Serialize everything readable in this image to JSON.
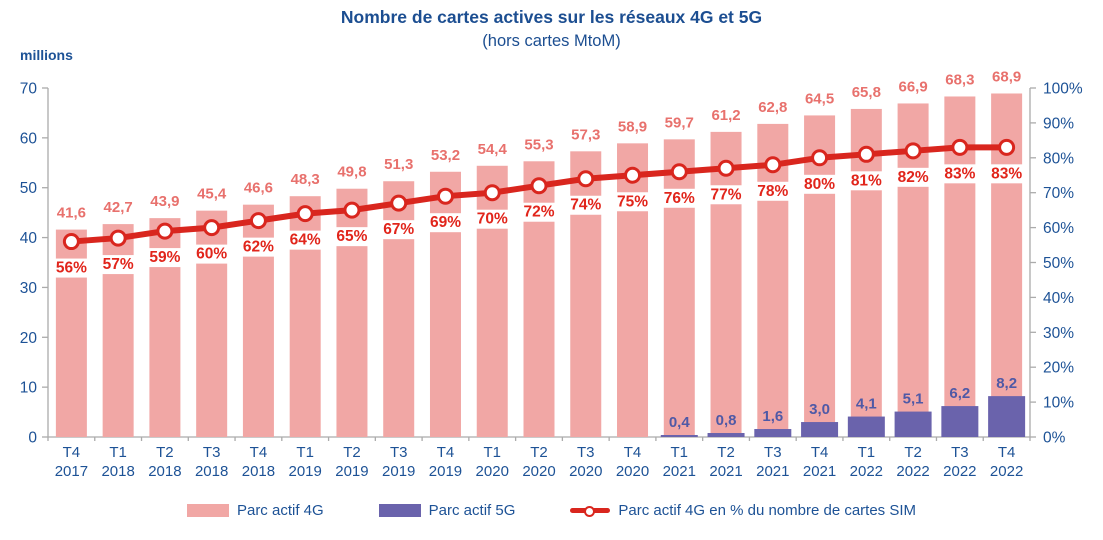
{
  "header": {
    "title": "Nombre de cartes actives sur les réseaux 4G et 5G",
    "subtitle": "(hors cartes MtoM)",
    "units_label": "millions"
  },
  "chart_data": {
    "type": "combo-bar-line",
    "title": "Nombre de cartes actives sur les réseaux 4G et 5G",
    "subtitle": "(hors cartes MtoM)",
    "unit_left": "millions",
    "grid": false,
    "legend_position": "bottom",
    "categories": [
      {
        "quarter": "T4",
        "year": "2017"
      },
      {
        "quarter": "T1",
        "year": "2018"
      },
      {
        "quarter": "T2",
        "year": "2018"
      },
      {
        "quarter": "T3",
        "year": "2018"
      },
      {
        "quarter": "T4",
        "year": "2018"
      },
      {
        "quarter": "T1",
        "year": "2019"
      },
      {
        "quarter": "T2",
        "year": "2019"
      },
      {
        "quarter": "T3",
        "year": "2019"
      },
      {
        "quarter": "T4",
        "year": "2019"
      },
      {
        "quarter": "T1",
        "year": "2020"
      },
      {
        "quarter": "T2",
        "year": "2020"
      },
      {
        "quarter": "T3",
        "year": "2020"
      },
      {
        "quarter": "T4",
        "year": "2020"
      },
      {
        "quarter": "T1",
        "year": "2021"
      },
      {
        "quarter": "T2",
        "year": "2021"
      },
      {
        "quarter": "T3",
        "year": "2021"
      },
      {
        "quarter": "T4",
        "year": "2021"
      },
      {
        "quarter": "T1",
        "year": "2022"
      },
      {
        "quarter": "T2",
        "year": "2022"
      },
      {
        "quarter": "T3",
        "year": "2022"
      },
      {
        "quarter": "T4",
        "year": "2022"
      }
    ],
    "series": [
      {
        "name": "Parc actif 4G",
        "type": "bar",
        "axis": "left",
        "values": [
          41.6,
          42.7,
          43.9,
          45.4,
          46.6,
          48.3,
          49.8,
          51.3,
          53.2,
          54.4,
          55.3,
          57.3,
          58.9,
          59.7,
          61.2,
          62.8,
          64.5,
          65.8,
          66.9,
          68.3,
          68.9
        ]
      },
      {
        "name": "Parc actif 5G",
        "type": "bar",
        "axis": "left",
        "values": [
          null,
          null,
          null,
          null,
          null,
          null,
          null,
          null,
          null,
          null,
          null,
          null,
          null,
          0.4,
          0.8,
          1.6,
          3.0,
          4.1,
          5.1,
          6.2,
          8.2
        ]
      },
      {
        "name": "Parc actif 4G en % du nombre de cartes SIM",
        "type": "line",
        "axis": "right",
        "values": [
          56,
          57,
          59,
          60,
          62,
          64,
          65,
          67,
          69,
          70,
          72,
          74,
          75,
          76,
          77,
          78,
          80,
          81,
          82,
          83,
          83
        ]
      }
    ],
    "y_left": {
      "min": 0,
      "max": 70,
      "step": 10
    },
    "y_right": {
      "min": 0,
      "max": 100,
      "step": 10,
      "suffix": "%"
    },
    "decimal_separator": ",",
    "colors": {
      "bar_4g": "#F1A7A5",
      "bar_4g_label": "#E8716D",
      "bar_5g": "#6A63AC",
      "bar_5g_label": "#4F59A6",
      "line": "#D9261E",
      "line_marker_fill": "#FFFFFF",
      "pct_label": "#E1251B",
      "axis_text": "#1D5296",
      "title_text": "#1C4E91",
      "axis_line": "#ABABAB"
    }
  }
}
